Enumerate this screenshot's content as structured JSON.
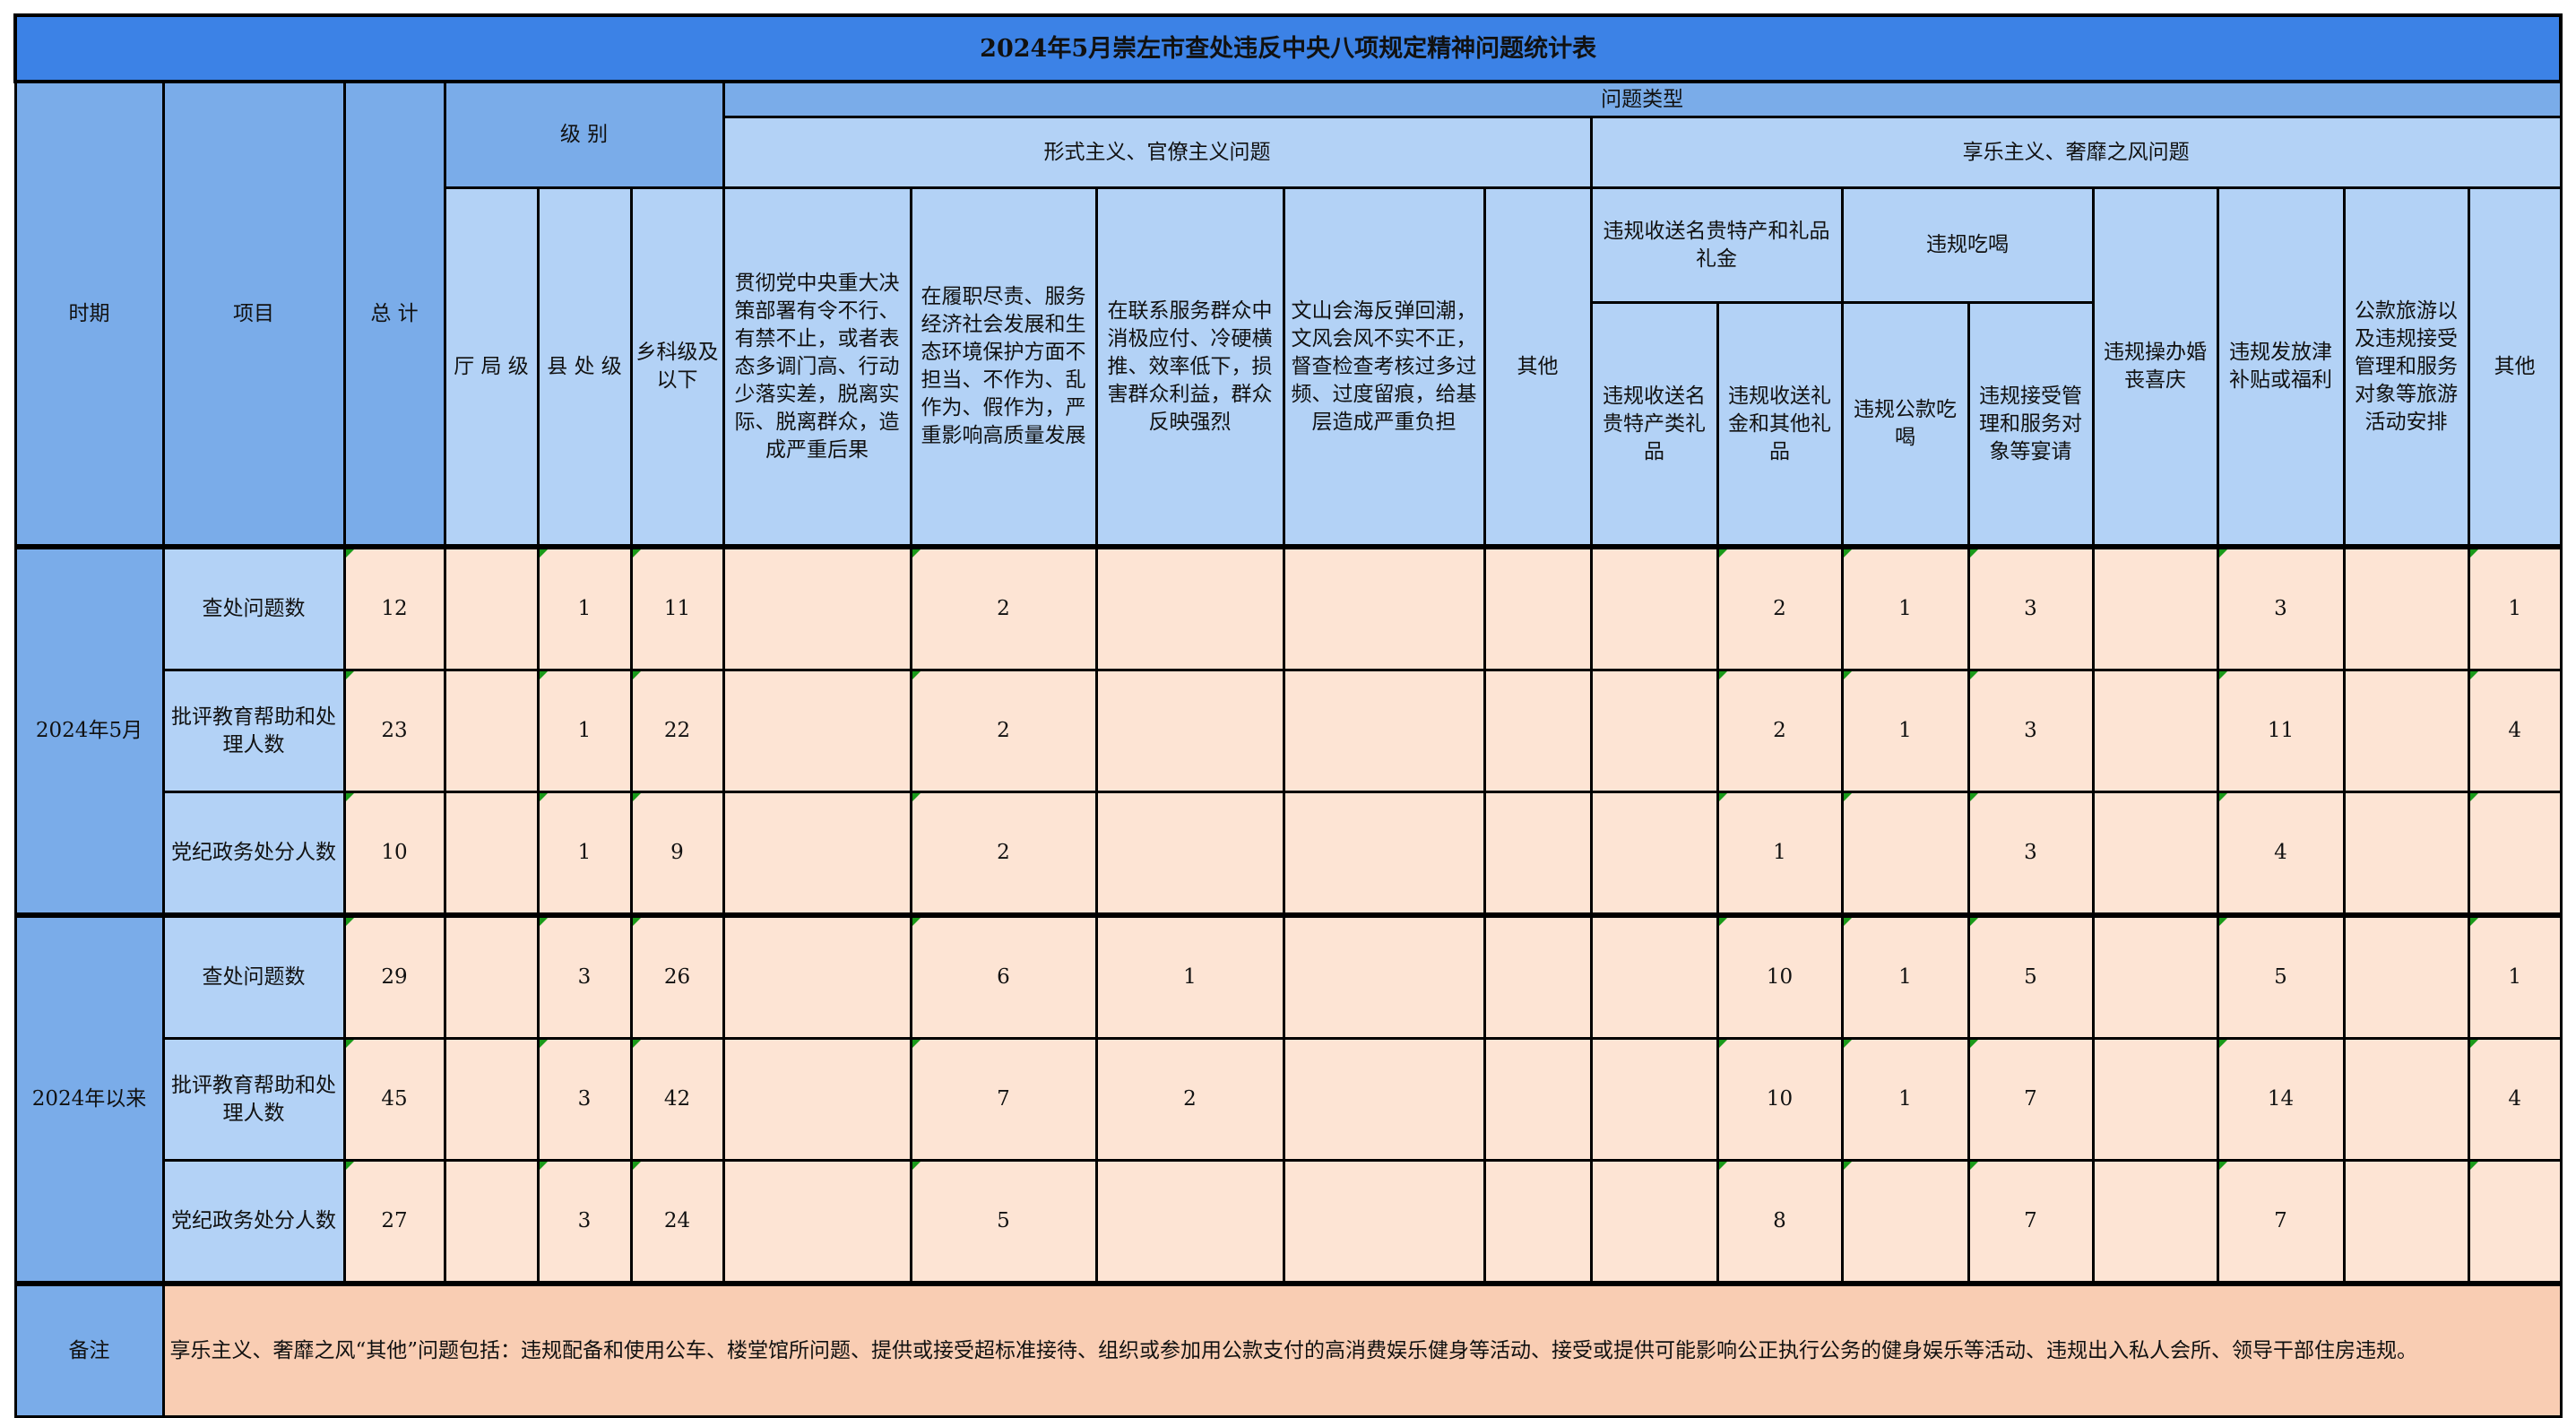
{
  "title": "2024年5月崇左市查处违反中央八项规定精神问题统计表",
  "headers": {
    "period": "时期",
    "item": "项目",
    "total": "总 计",
    "level": "级 别",
    "problem_type": "问题类型",
    "formalism": "形式主义、官僚主义问题",
    "hedonism": "享乐主义、奢靡之风问题",
    "level_ting": "厅 局 级",
    "level_xian": "县 处 级",
    "level_xiang": "乡科级及以下",
    "f1": "贯彻党中央重大决策部署有令不行、有禁不止，或者表态多调门高、行动少落实差，脱离实际、脱离群众，造成严重后果",
    "f2": "在履职尽责、服务经济社会发展和生态环境保护方面不担当、不作为、乱作为、假作为，严重影响高质量发展",
    "f3": "在联系服务群众中消极应付、冷硬横推、效率低下，损害群众利益，群众反映强烈",
    "f4": "文山会海反弹回潮，文风会风不实不正，督查检查考核过多过频、过度留痕，给基层造成严重负担",
    "f5": "其他",
    "h_gift": "违规收送名贵特产和礼品礼金",
    "h_dining": "违规吃喝",
    "h_wedding": "违规操办婚丧喜庆",
    "h_allowance": "违规发放津补贴或福利",
    "h_travel": "公款旅游以及违规接受管理和服务对象等旅游活动安排",
    "h_other": "其他",
    "h_gift_a": "违规收送名贵特产类礼品",
    "h_gift_b": "违规收送礼金和其他礼品",
    "h_dining_a": "违规公款吃喝",
    "h_dining_b": "违规接受管理和服务对象等宴请"
  },
  "groups": [
    {
      "period": "2024年5月",
      "rows": [
        {
          "item": "查处问题数",
          "values": [
            "12",
            "",
            "1",
            "11",
            "",
            "2",
            "",
            "",
            "",
            "",
            "2",
            "1",
            "3",
            "",
            "3",
            "",
            "1"
          ]
        },
        {
          "item": "批评教育帮助和处理人数",
          "values": [
            "23",
            "",
            "1",
            "22",
            "",
            "2",
            "",
            "",
            "",
            "",
            "2",
            "1",
            "3",
            "",
            "11",
            "",
            "4"
          ]
        },
        {
          "item": "党纪政务处分人数",
          "values": [
            "10",
            "",
            "1",
            "9",
            "",
            "2",
            "",
            "",
            "",
            "",
            "1",
            "",
            "3",
            "",
            "4",
            "",
            ""
          ]
        }
      ]
    },
    {
      "period": "2024年以来",
      "rows": [
        {
          "item": "查处问题数",
          "values": [
            "29",
            "",
            "3",
            "26",
            "",
            "6",
            "1",
            "",
            "",
            "",
            "10",
            "1",
            "5",
            "",
            "5",
            "",
            "1"
          ]
        },
        {
          "item": "批评教育帮助和处理人数",
          "values": [
            "45",
            "",
            "3",
            "42",
            "",
            "7",
            "2",
            "",
            "",
            "",
            "10",
            "1",
            "7",
            "",
            "14",
            "",
            "4"
          ]
        },
        {
          "item": "党纪政务处分人数",
          "values": [
            "27",
            "",
            "3",
            "24",
            "",
            "5",
            "",
            "",
            "",
            "",
            "8",
            "",
            "7",
            "",
            "7",
            "",
            ""
          ]
        }
      ]
    }
  ],
  "remark": {
    "label": "备注",
    "text": "享乐主义、奢靡之风“其他”问题包括：违规配备和使用公车、楼堂馆所问题、提供或接受超标准接待、组织或参加用公款支付的高消费娱乐健身等活动、接受或提供可能影响公正执行公务的健身娱乐等活动、违规出入私人会所、领导干部住房违规。"
  },
  "colors": {
    "title_bg": "#3c82e6",
    "header_dark": "#7aace9",
    "header_light": "#b3d2f6",
    "data_bg": "#fde4d4",
    "remark_bg": "#f9cdb3",
    "comment_marker": "#1a9a1a"
  }
}
